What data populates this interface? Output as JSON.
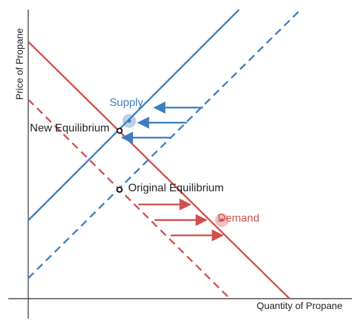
{
  "chart_data": {
    "type": "line",
    "title": "",
    "xlabel": "Quantity of Propane",
    "ylabel": "Price of Propane",
    "xlim": [
      0,
      10
    ],
    "ylim": [
      0,
      10
    ],
    "grid": false,
    "legend": "none",
    "colors": {
      "supply": "#3f7fbf",
      "demand": "#d0504e",
      "text": "#222222"
    },
    "series": [
      {
        "role": "supply-new",
        "style": "solid",
        "color": "#3f7fbf",
        "points": [
          [
            0,
            2.71
          ],
          [
            6.51,
            10
          ]
        ]
      },
      {
        "role": "supply-original",
        "style": "dashed",
        "color": "#3f7fbf",
        "points": [
          [
            0,
            0.71
          ],
          [
            8.41,
            10
          ]
        ]
      },
      {
        "role": "demand-new",
        "style": "solid",
        "color": "#d0504e",
        "points": [
          [
            0,
            8.89
          ],
          [
            8.07,
            0
          ]
        ]
      },
      {
        "role": "demand-original",
        "style": "dashed",
        "color": "#d0504e",
        "points": [
          [
            0,
            6.89
          ],
          [
            6.23,
            0
          ]
        ]
      }
    ],
    "points": [
      {
        "label": "New Equilibrium",
        "x": 2.82,
        "y": 5.81
      },
      {
        "label": "Original Equilibrium",
        "x": 2.82,
        "y": 3.77
      }
    ],
    "labels": {
      "supply": "Supply",
      "demand": "Demand",
      "new_eq": "New Equilibrium",
      "orig_eq": "Original Equilibrium"
    },
    "handles": {
      "supply": {
        "x": 3.12,
        "y": 6.15
      },
      "demand": {
        "x": 5.98,
        "y": 2.72
      }
    },
    "shift_arrows": {
      "supply": [
        {
          "from": [
            5.4,
            6.61
          ],
          "to": [
            3.9,
            6.61
          ]
        },
        {
          "from": [
            4.9,
            6.09
          ],
          "to": [
            3.4,
            6.09
          ]
        },
        {
          "from": [
            4.4,
            5.57
          ],
          "to": [
            2.9,
            5.57
          ]
        }
      ],
      "demand": [
        {
          "from": [
            3.4,
            3.26
          ],
          "to": [
            5.0,
            3.26
          ]
        },
        {
          "from": [
            3.9,
            2.72
          ],
          "to": [
            5.5,
            2.72
          ]
        },
        {
          "from": [
            4.4,
            2.19
          ],
          "to": [
            6.0,
            2.19
          ]
        }
      ]
    }
  }
}
